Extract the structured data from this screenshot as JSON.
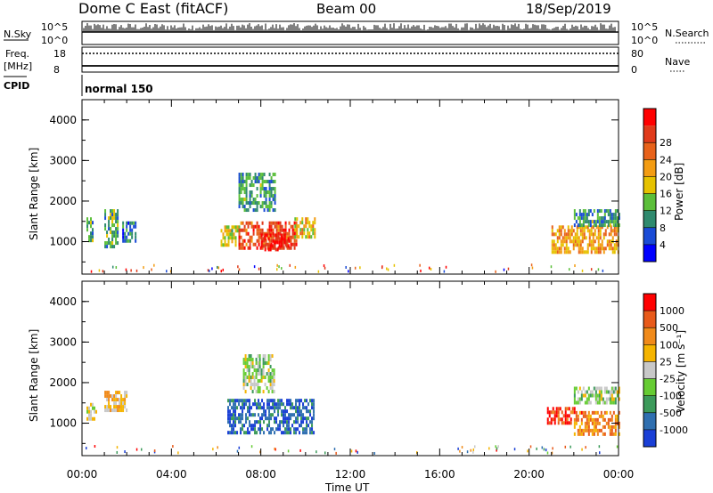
{
  "header": {
    "station": "Dome C East (fitACF)",
    "beam": "Beam 00",
    "date": "18/Sep/2019"
  },
  "status_panels": {
    "nsky": {
      "label": "N.Sky",
      "top": "10^5",
      "bottom": "10^0"
    },
    "nsearch": {
      "label": "N.Search",
      "top": "10^5",
      "bottom": "10^0"
    },
    "freq": {
      "label": "Freq.",
      "unit": "[MHz]",
      "top": "18",
      "bottom": "8"
    },
    "nave": {
      "label": "Nave",
      "top": "80",
      "bottom": "0"
    },
    "cpid": {
      "label": "CPID",
      "value": "normal 150"
    }
  },
  "chart_data": [
    {
      "type": "heatmap",
      "panel": "power",
      "ylabel": "Slant Range [km]",
      "xlabel": "Time UT",
      "ylim": [
        200,
        4500
      ],
      "yticks": [
        "1000",
        "2000",
        "3000",
        "4000"
      ],
      "xticks": [
        "00:00",
        "04:00",
        "08:00",
        "12:00",
        "16:00",
        "20:00",
        "00:00"
      ],
      "colorbar": {
        "label": "Power [dB]",
        "ticks": [
          "4",
          "8",
          "12",
          "16",
          "20",
          "24",
          "28"
        ],
        "colors": [
          "#0000ff",
          "#1a4bd6",
          "#2f8a6e",
          "#5bbf3a",
          "#e6c200",
          "#f39c12",
          "#e8621a",
          "#e03a1a",
          "#ff0000"
        ]
      },
      "regions": [
        {
          "t": [
            0.2,
            0.5
          ],
          "r": [
            1000,
            1600
          ],
          "level": 0.3
        },
        {
          "t": [
            1.0,
            1.6
          ],
          "r": [
            900,
            1800
          ],
          "level": 0.35
        },
        {
          "t": [
            1.8,
            2.4
          ],
          "r": [
            1000,
            1500
          ],
          "level": 0.25
        },
        {
          "t": [
            6.2,
            7.0
          ],
          "r": [
            900,
            1400
          ],
          "level": 0.45
        },
        {
          "t": [
            7.0,
            9.6
          ],
          "r": [
            800,
            1500
          ],
          "level": 0.8
        },
        {
          "t": [
            8.0,
            9.2
          ],
          "r": [
            800,
            1200
          ],
          "level": 0.95
        },
        {
          "t": [
            9.5,
            10.4
          ],
          "r": [
            1100,
            1600
          ],
          "level": 0.55
        },
        {
          "t": [
            7.0,
            8.6
          ],
          "r": [
            1800,
            2700
          ],
          "level": 0.3
        },
        {
          "t": [
            21.0,
            24.0
          ],
          "r": [
            700,
            1400
          ],
          "level": 0.6
        },
        {
          "t": [
            22.0,
            24.0
          ],
          "r": [
            1400,
            1800
          ],
          "level": 0.3
        }
      ]
    },
    {
      "type": "heatmap",
      "panel": "velocity",
      "ylabel": "Slant Range [km]",
      "xlabel": "Time UT",
      "ylim": [
        200,
        4500
      ],
      "yticks": [
        "1000",
        "2000",
        "3000",
        "4000"
      ],
      "xticks": [
        "00:00",
        "04:00",
        "08:00",
        "12:00",
        "16:00",
        "20:00",
        "00:00"
      ],
      "colorbar": {
        "label": "Velocity [m s⁻¹]",
        "ticks": [
          "1000",
          "500",
          "100",
          "25",
          "-25",
          "-100",
          "-500",
          "-1000"
        ],
        "colors": [
          "#1a3fd6",
          "#2f6fb0",
          "#3c9a5a",
          "#66cc33",
          "#c8c8c8",
          "#f5b400",
          "#f08a1a",
          "#e85a1a",
          "#ff0000"
        ]
      },
      "regions": [
        {
          "t": [
            0.2,
            0.6
          ],
          "r": [
            1100,
            1500
          ],
          "level": 0.55
        },
        {
          "t": [
            1.0,
            2.0
          ],
          "r": [
            1300,
            1800
          ],
          "level": 0.6
        },
        {
          "t": [
            6.5,
            10.4
          ],
          "r": [
            800,
            1600
          ],
          "level": 0.15
        },
        {
          "t": [
            7.2,
            8.6
          ],
          "r": [
            1800,
            2700
          ],
          "level": 0.45
        },
        {
          "t": [
            20.8,
            22.0
          ],
          "r": [
            1000,
            1400
          ],
          "level": 0.9
        },
        {
          "t": [
            22.0,
            24.0
          ],
          "r": [
            700,
            1300
          ],
          "level": 0.75
        },
        {
          "t": [
            22.0,
            24.0
          ],
          "r": [
            1500,
            1900
          ],
          "level": 0.45
        }
      ]
    }
  ]
}
